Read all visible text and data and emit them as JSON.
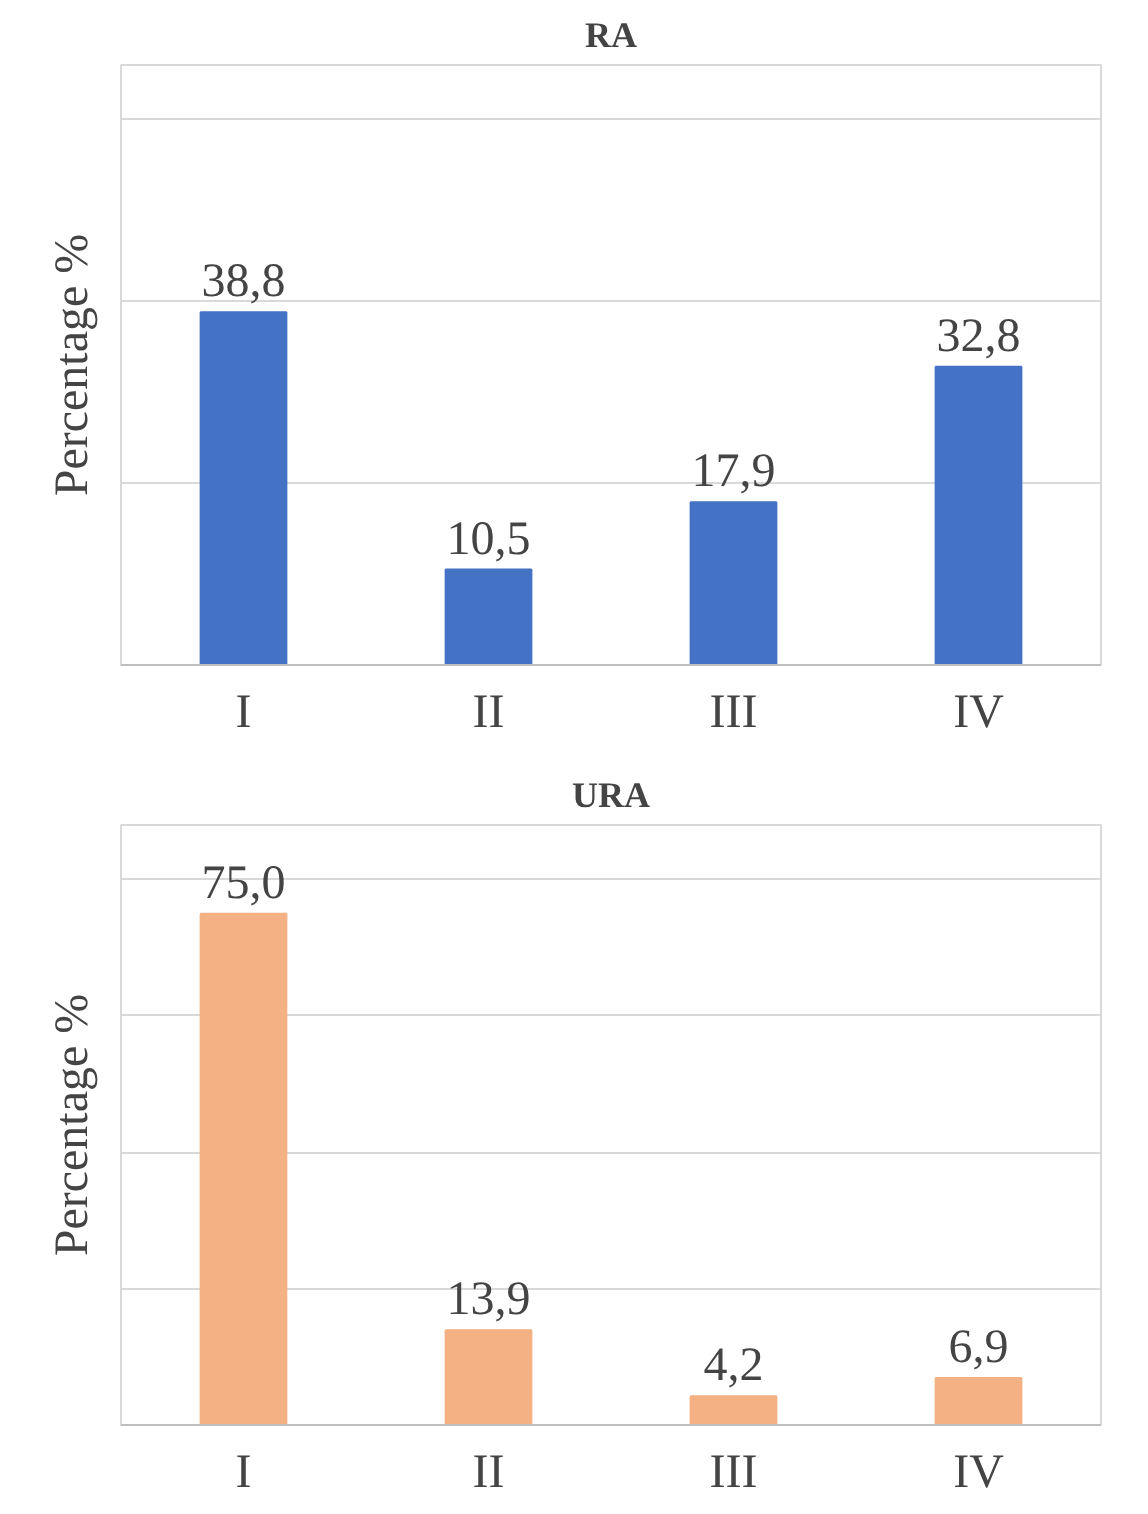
{
  "chart_data": [
    {
      "type": "bar",
      "title": "RA",
      "ylabel": "Percentage %",
      "categories": [
        "I",
        "II",
        "III",
        "IV"
      ],
      "values": [
        38.8,
        10.5,
        17.9,
        32.8
      ],
      "color": "#4472c4",
      "value_labels": [
        "38,8",
        "10,5",
        "17,9",
        "32,8"
      ],
      "ylim": [
        0,
        66
      ],
      "yticks": [
        {
          "value": 0,
          "label": null
        },
        {
          "value": 20,
          "label": null
        },
        {
          "value": 40,
          "label": null
        },
        {
          "value": 60,
          "label": null
        }
      ],
      "grid": "y",
      "tick_labels": "x"
    },
    {
      "type": "bar",
      "title": "URA",
      "ylabel": "Percentage %",
      "categories": [
        "I",
        "II",
        "III",
        "IV"
      ],
      "values": [
        75.0,
        13.9,
        4.2,
        6.9
      ],
      "color": "#f4b183",
      "value_labels": [
        "75,0",
        "13,9",
        "4,2",
        "6,9"
      ],
      "ylim": [
        0,
        88
      ],
      "yticks": [
        {
          "value": 0,
          "label": null
        },
        {
          "value": 20,
          "label": null
        },
        {
          "value": 40,
          "label": null
        },
        {
          "value": 60,
          "label": null
        },
        {
          "value": 80,
          "label": null
        }
      ],
      "grid": "y",
      "tick_labels": "x"
    }
  ]
}
